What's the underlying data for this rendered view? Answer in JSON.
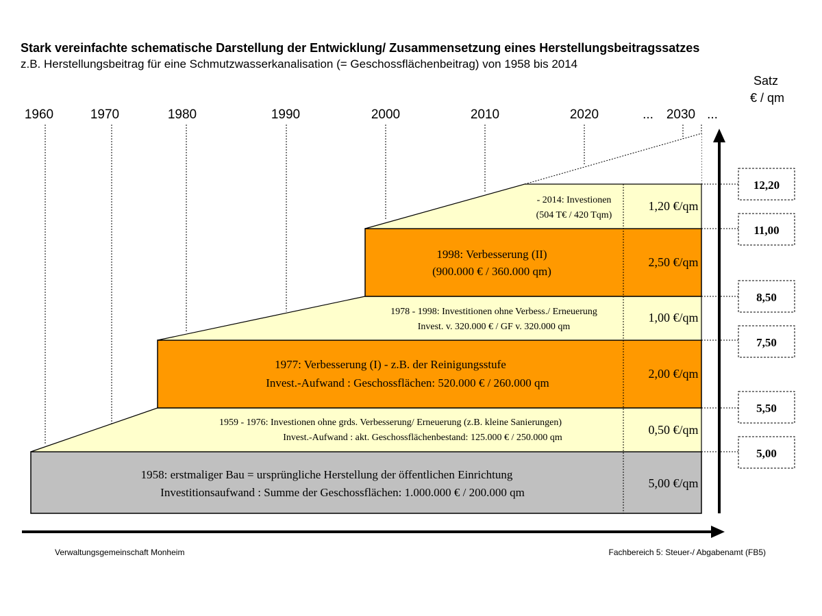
{
  "title": "Stark vereinfachte schematische Darstellung der Entwicklung/ Zusammensetzung eines Herstellungsbeitragssatzes",
  "subtitle": "z.B. Herstellungsbeitrag für eine Schmutzwasserkanalisation (= Geschossflächenbeitrag) von 1958 bis 2014",
  "axis": {
    "satz_line1": "Satz",
    "satz_line2": "€ / qm",
    "years": [
      "1960",
      "1970",
      "1980",
      "1990",
      "2000",
      "2010",
      "2020",
      "2030"
    ],
    "ellipsis_before": "...",
    "ellipsis_after": "..."
  },
  "blocks": [
    {
      "line1": "1958: erstmaliger Bau = ursprüngliche Herstellung der öffentlichen Einrichtung",
      "line2": "Investitionsaufwand : Summe der Geschossflächen:  1.000.000 € / 200.000 qm",
      "rate": "5,00 €/qm",
      "color": "#c0c0c0"
    },
    {
      "line1": "1959 - 1976: Investionen ohne grds. Verbesserung/ Erneuerung (z.B. kleine Sanierungen)",
      "line2": "Invest.-Aufwand : akt. Geschossflächenbestand:  125.000 € / 250.000 qm",
      "rate": "0,50 €/qm",
      "color": "#ffffcc"
    },
    {
      "line1": "1977: Verbesserung (I) - z.B. der Reinigungsstufe",
      "line2": "Invest.-Aufwand : Geschossflächen:  520.000 € / 260.000 qm",
      "rate": "2,00 €/qm",
      "color": "#ff9900"
    },
    {
      "line1": "1978 - 1998: Investitionen ohne Verbess./ Erneuerung",
      "line2": "Invest. v. 320.000 €  /  GF v. 320.000 qm",
      "rate": "1,00 €/qm",
      "color": "#ffffcc"
    },
    {
      "line1": "1998: Verbesserung (II)",
      "line2": "(900.000 € /  360.000 qm)",
      "rate": "2,50 €/qm",
      "color": "#ff9900"
    },
    {
      "line1": "- 2014: Investionen",
      "line2": "(504 T€ / 420 Tqm)",
      "rate": "1,20 €/qm",
      "color": "#ffffcc"
    }
  ],
  "cumulative": [
    "12,20",
    "11,00",
    "8,50",
    "7,50",
    "5,50",
    "5,00"
  ],
  "footer": {
    "left": "Verwaltungsgemeinschaft Monheim",
    "right": "Fachbereich 5: Steuer-/ Abgabenamt (FB5)"
  }
}
